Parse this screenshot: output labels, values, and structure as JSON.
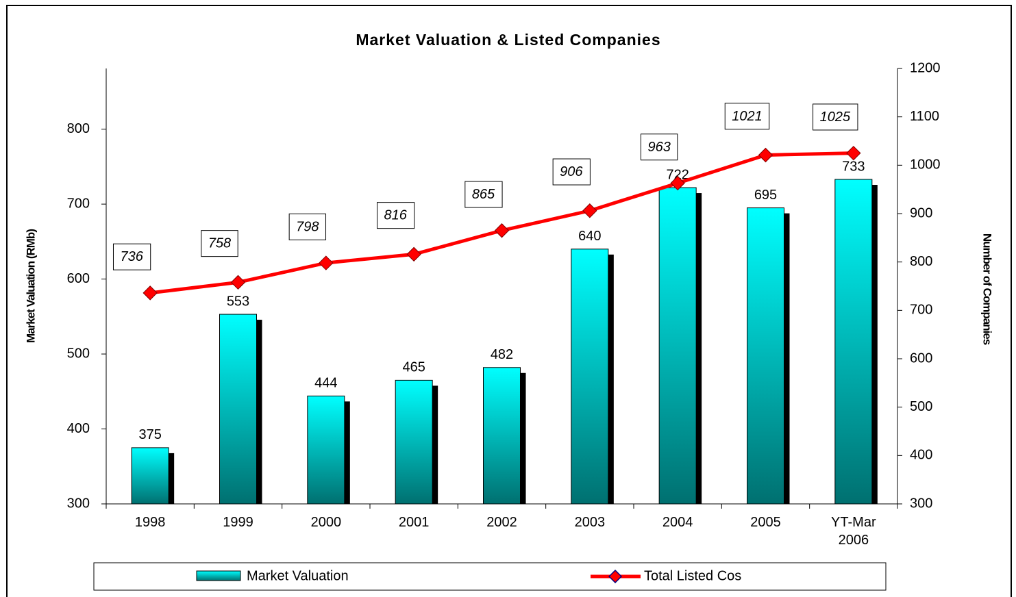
{
  "chart_data": {
    "type": "bar_line",
    "title": "Market Valuation & Listed Companies",
    "y_label": "Market Valuation (RMb)",
    "y2_label": "Number of Companies",
    "categories": [
      "1998",
      "1999",
      "2000",
      "2001",
      "2002",
      "2003",
      "2004",
      "2005",
      "YT-Mar 2006"
    ],
    "series": [
      {
        "name": "Market Valuation",
        "type": "bar",
        "color": "#00ffff",
        "color_bottom": "#007070",
        "values": [
          375,
          553,
          444,
          465,
          482,
          640,
          722,
          695,
          733
        ]
      },
      {
        "name": "Total Listed Cos",
        "type": "line",
        "axis": "y2",
        "color": "#ff0000",
        "values": [
          736,
          758,
          798,
          816,
          865,
          906,
          963,
          1021,
          1025
        ]
      }
    ],
    "ylim": [
      300,
      881
    ],
    "yticks": [
      300,
      400,
      500,
      600,
      700,
      800
    ],
    "y2lim": [
      300,
      1200
    ],
    "y2ticks": [
      300,
      400,
      500,
      600,
      700,
      800,
      900,
      1000,
      1100,
      1200
    ],
    "legend": "bottom"
  }
}
